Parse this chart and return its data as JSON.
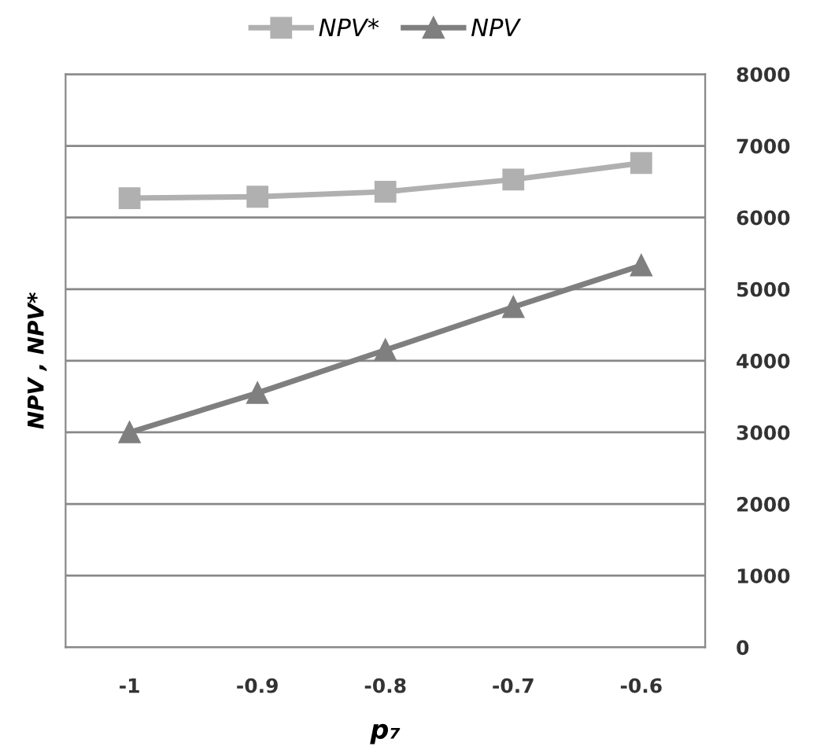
{
  "chart_data": {
    "type": "line",
    "xlabel": "p₇",
    "ylabel": "NPV , NPV*",
    "categories": [
      "-1",
      "-0.9",
      "-0.8",
      "-0.7",
      "-0.6"
    ],
    "series": [
      {
        "name": "NPV*",
        "color": "#b0b0b0",
        "marker": "square",
        "values": [
          6270,
          6290,
          6360,
          6530,
          6760
        ]
      },
      {
        "name": "NPV",
        "color": "#7f7f7f",
        "marker": "triangle",
        "values": [
          3000,
          3550,
          4150,
          4750,
          5330
        ]
      }
    ],
    "ylim": [
      0,
      8000
    ],
    "yticks": [
      0,
      1000,
      2000,
      3000,
      4000,
      5000,
      6000,
      7000,
      8000
    ],
    "grid": "y",
    "legend": "top",
    "line_style": "solid"
  }
}
